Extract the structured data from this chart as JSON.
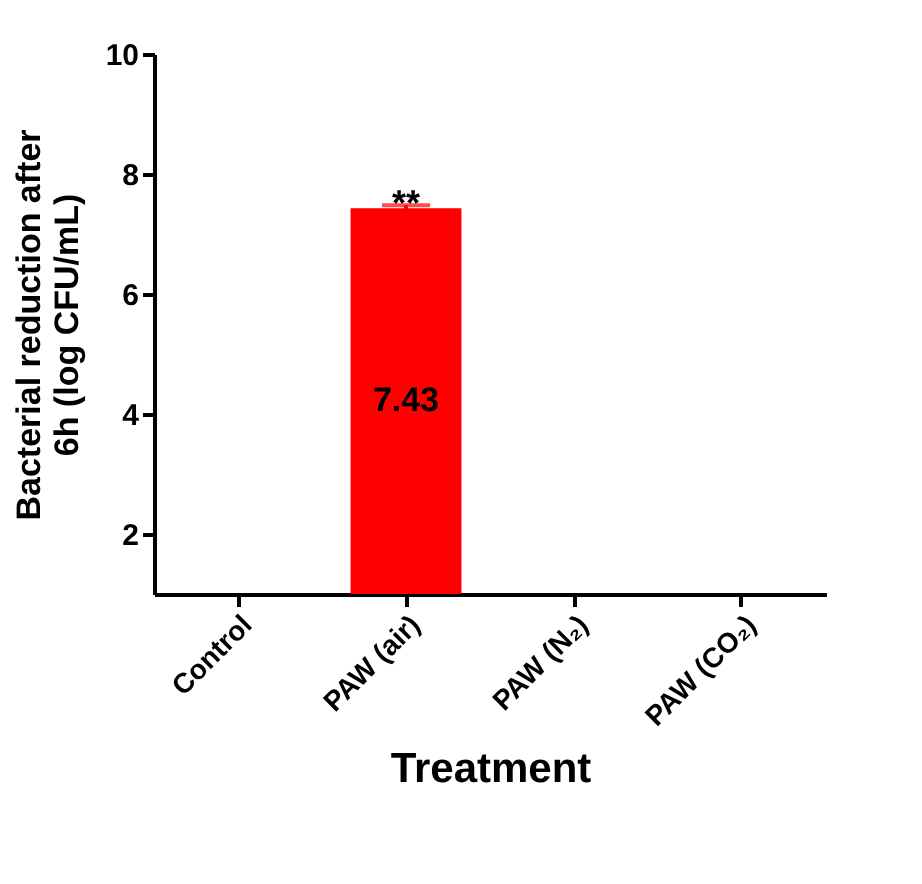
{
  "chart_data": {
    "type": "bar",
    "xlabel": "Treatment",
    "ylabel": "Bacterial reduction after 6h (log CFU/mL)",
    "categories": [
      "Control",
      "PAW (air)",
      "PAW (N₂)",
      "PAW (CO₂)"
    ],
    "values": [
      null,
      7.43,
      null,
      null
    ],
    "errors": [
      null,
      0.05,
      null,
      null
    ],
    "color": "#ff0000",
    "value_labels": [
      null,
      "7.43",
      null,
      null
    ],
    "annotations": [
      "**"
    ],
    "ylim": [
      1,
      10
    ],
    "yticks": [
      2,
      4,
      6,
      8,
      10
    ],
    "grid": false
  }
}
